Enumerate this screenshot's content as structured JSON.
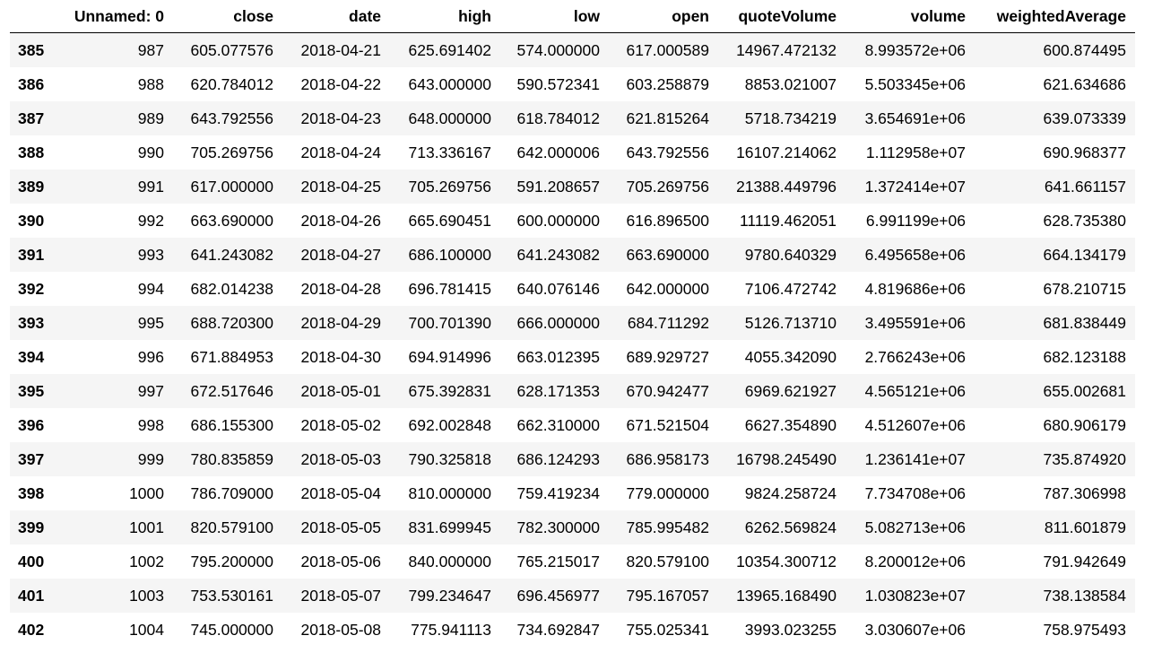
{
  "table": {
    "columns": [
      "",
      "Unnamed: 0",
      "close",
      "date",
      "high",
      "low",
      "open",
      "quoteVolume",
      "volume",
      "weightedAverage"
    ],
    "rows": [
      [
        "385",
        "987",
        "605.077576",
        "2018-04-21",
        "625.691402",
        "574.000000",
        "617.000589",
        "14967.472132",
        "8.993572e+06",
        "600.874495"
      ],
      [
        "386",
        "988",
        "620.784012",
        "2018-04-22",
        "643.000000",
        "590.572341",
        "603.258879",
        "8853.021007",
        "5.503345e+06",
        "621.634686"
      ],
      [
        "387",
        "989",
        "643.792556",
        "2018-04-23",
        "648.000000",
        "618.784012",
        "621.815264",
        "5718.734219",
        "3.654691e+06",
        "639.073339"
      ],
      [
        "388",
        "990",
        "705.269756",
        "2018-04-24",
        "713.336167",
        "642.000006",
        "643.792556",
        "16107.214062",
        "1.112958e+07",
        "690.968377"
      ],
      [
        "389",
        "991",
        "617.000000",
        "2018-04-25",
        "705.269756",
        "591.208657",
        "705.269756",
        "21388.449796",
        "1.372414e+07",
        "641.661157"
      ],
      [
        "390",
        "992",
        "663.690000",
        "2018-04-26",
        "665.690451",
        "600.000000",
        "616.896500",
        "11119.462051",
        "6.991199e+06",
        "628.735380"
      ],
      [
        "391",
        "993",
        "641.243082",
        "2018-04-27",
        "686.100000",
        "641.243082",
        "663.690000",
        "9780.640329",
        "6.495658e+06",
        "664.134179"
      ],
      [
        "392",
        "994",
        "682.014238",
        "2018-04-28",
        "696.781415",
        "640.076146",
        "642.000000",
        "7106.472742",
        "4.819686e+06",
        "678.210715"
      ],
      [
        "393",
        "995",
        "688.720300",
        "2018-04-29",
        "700.701390",
        "666.000000",
        "684.711292",
        "5126.713710",
        "3.495591e+06",
        "681.838449"
      ],
      [
        "394",
        "996",
        "671.884953",
        "2018-04-30",
        "694.914996",
        "663.012395",
        "689.929727",
        "4055.342090",
        "2.766243e+06",
        "682.123188"
      ],
      [
        "395",
        "997",
        "672.517646",
        "2018-05-01",
        "675.392831",
        "628.171353",
        "670.942477",
        "6969.621927",
        "4.565121e+06",
        "655.002681"
      ],
      [
        "396",
        "998",
        "686.155300",
        "2018-05-02",
        "692.002848",
        "662.310000",
        "671.521504",
        "6627.354890",
        "4.512607e+06",
        "680.906179"
      ],
      [
        "397",
        "999",
        "780.835859",
        "2018-05-03",
        "790.325818",
        "686.124293",
        "686.958173",
        "16798.245490",
        "1.236141e+07",
        "735.874920"
      ],
      [
        "398",
        "1000",
        "786.709000",
        "2018-05-04",
        "810.000000",
        "759.419234",
        "779.000000",
        "9824.258724",
        "7.734708e+06",
        "787.306998"
      ],
      [
        "399",
        "1001",
        "820.579100",
        "2018-05-05",
        "831.699945",
        "782.300000",
        "785.995482",
        "6262.569824",
        "5.082713e+06",
        "811.601879"
      ],
      [
        "400",
        "1002",
        "795.200000",
        "2018-05-06",
        "840.000000",
        "765.215017",
        "820.579100",
        "10354.300712",
        "8.200012e+06",
        "791.942649"
      ],
      [
        "401",
        "1003",
        "753.530161",
        "2018-05-07",
        "799.234647",
        "696.456977",
        "795.167057",
        "13965.168490",
        "1.030823e+07",
        "738.138584"
      ],
      [
        "402",
        "1004",
        "745.000000",
        "2018-05-08",
        "775.941113",
        "734.692847",
        "755.025341",
        "3993.023255",
        "3.030607e+06",
        "758.975493"
      ]
    ]
  }
}
